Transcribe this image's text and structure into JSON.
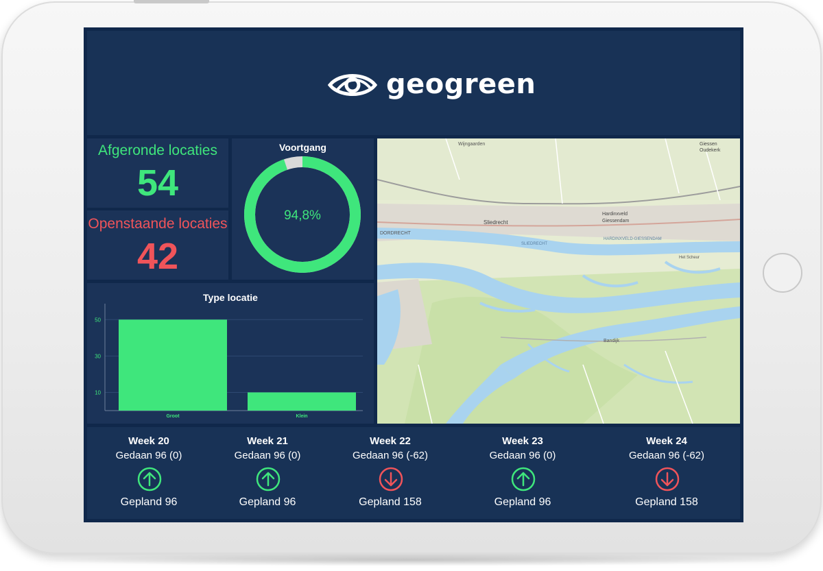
{
  "brand": {
    "name": "geogreen"
  },
  "colors": {
    "green": "#3fe67c",
    "red": "#f0545a",
    "background": "#10284b",
    "panel": "#1b3358",
    "track": "#d9d9d9"
  },
  "stats": {
    "completed": {
      "label": "Afgeronde locaties",
      "value": "54"
    },
    "open": {
      "label": "Openstaande locaties",
      "value": "42"
    }
  },
  "progress": {
    "title": "Voortgang",
    "percent_label": "94,8%",
    "percent": 94.8
  },
  "chart_data": {
    "type": "bar",
    "title": "Type locatie",
    "categories": [
      "Groot",
      "Klein"
    ],
    "values": [
      50,
      10
    ],
    "yticks": [
      "10",
      "30",
      "50"
    ],
    "ylim": [
      0,
      55
    ],
    "xlabel": "",
    "ylabel": "",
    "grid": true
  },
  "map": {
    "labels": [
      "Wijngaarden",
      "Sliedrecht",
      "Hardinxveld Giessendam",
      "Giessen Oudekerk",
      "DORDRECHT",
      "Bandijk",
      "Het Scheur",
      "SLIEDRECHT",
      "HARDINXVELD-GIESSENDAM"
    ],
    "icons": [
      "map-view"
    ]
  },
  "weeks": [
    {
      "title": "Week 20",
      "done": "Gedaan 96 (0)",
      "planned": "Gepland 96",
      "trend": "up"
    },
    {
      "title": "Week 21",
      "done": "Gedaan 96 (0)",
      "planned": "Gepland 96",
      "trend": "up"
    },
    {
      "title": "Week 22",
      "done": "Gedaan 96 (-62)",
      "planned": "Gepland 158",
      "trend": "down"
    },
    {
      "title": "Week 23",
      "done": "Gedaan 96 (0)",
      "planned": "Gepland 96",
      "trend": "up"
    },
    {
      "title": "Week 24",
      "done": "Gedaan 96 (-62)",
      "planned": "Gepland 158",
      "trend": "down"
    }
  ]
}
